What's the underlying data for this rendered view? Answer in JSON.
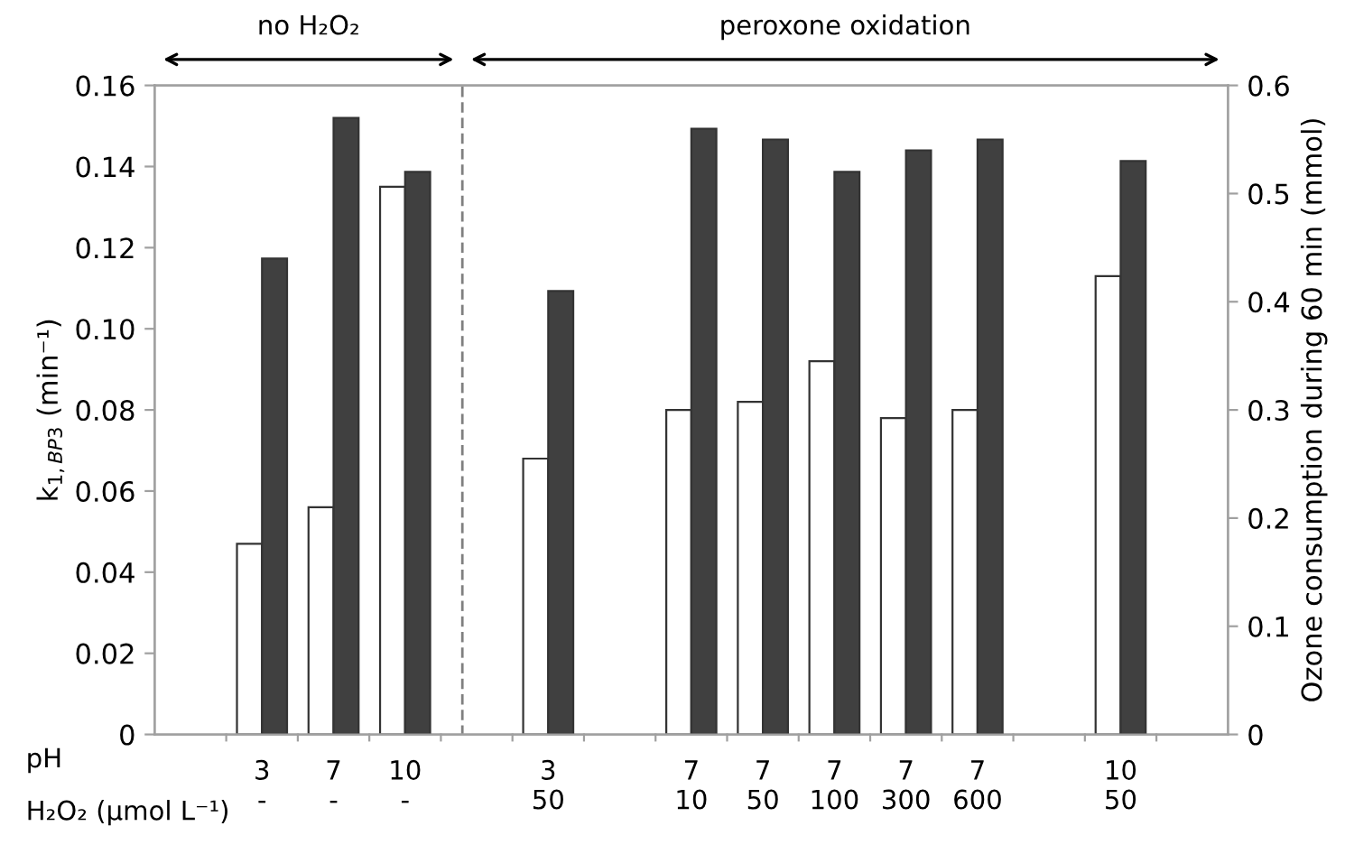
{
  "chart_data": {
    "type": "bar",
    "categories": [
      null,
      "3\n-",
      "7\n-",
      "10\n-",
      null,
      "3\n50",
      null,
      "7\n10",
      "7\n50",
      "7\n100",
      "7\n300",
      "7\n600",
      null,
      "10\n50",
      null
    ],
    "xlabel": "pH\nH₂O₂ (μmol L⁻¹)",
    "ylabel": "k$_{1,BP3}$ (min⁻¹)",
    "y2label": "Ozone consumption during 60 min (mmol)",
    "series": [
      {
        "color": "#ffffff",
        "values": [
          null,
          0.047,
          0.056,
          0.135,
          null,
          0.068,
          null,
          0.08,
          0.082,
          0.092,
          0.078,
          0.08,
          null,
          0.113,
          null
        ]
      },
      {
        "color": "#404040",
        "axis": "y2",
        "values": [
          null,
          0.44,
          0.57,
          0.52,
          null,
          0.41,
          null,
          0.56,
          0.55,
          0.52,
          0.54,
          0.55,
          null,
          0.53,
          null
        ]
      }
    ],
    "ylim": [
      0,
      0.16
    ],
    "yticks": [
      {
        "value": 0,
        "label": "0"
      },
      0.02,
      0.04,
      0.06,
      0.08,
      {
        "value": 0.1,
        "label": "0.10"
      },
      0.12,
      0.14,
      0.16
    ],
    "y2lim": [
      0,
      0.6
    ],
    "y2ticks": [
      0,
      0.1,
      0.2,
      0.3,
      0.4,
      0.5,
      0.6
    ],
    "annotations": [
      "no H₂O₂",
      "peroxone oxidation"
    ],
    "grid": false,
    "legend": false
  }
}
